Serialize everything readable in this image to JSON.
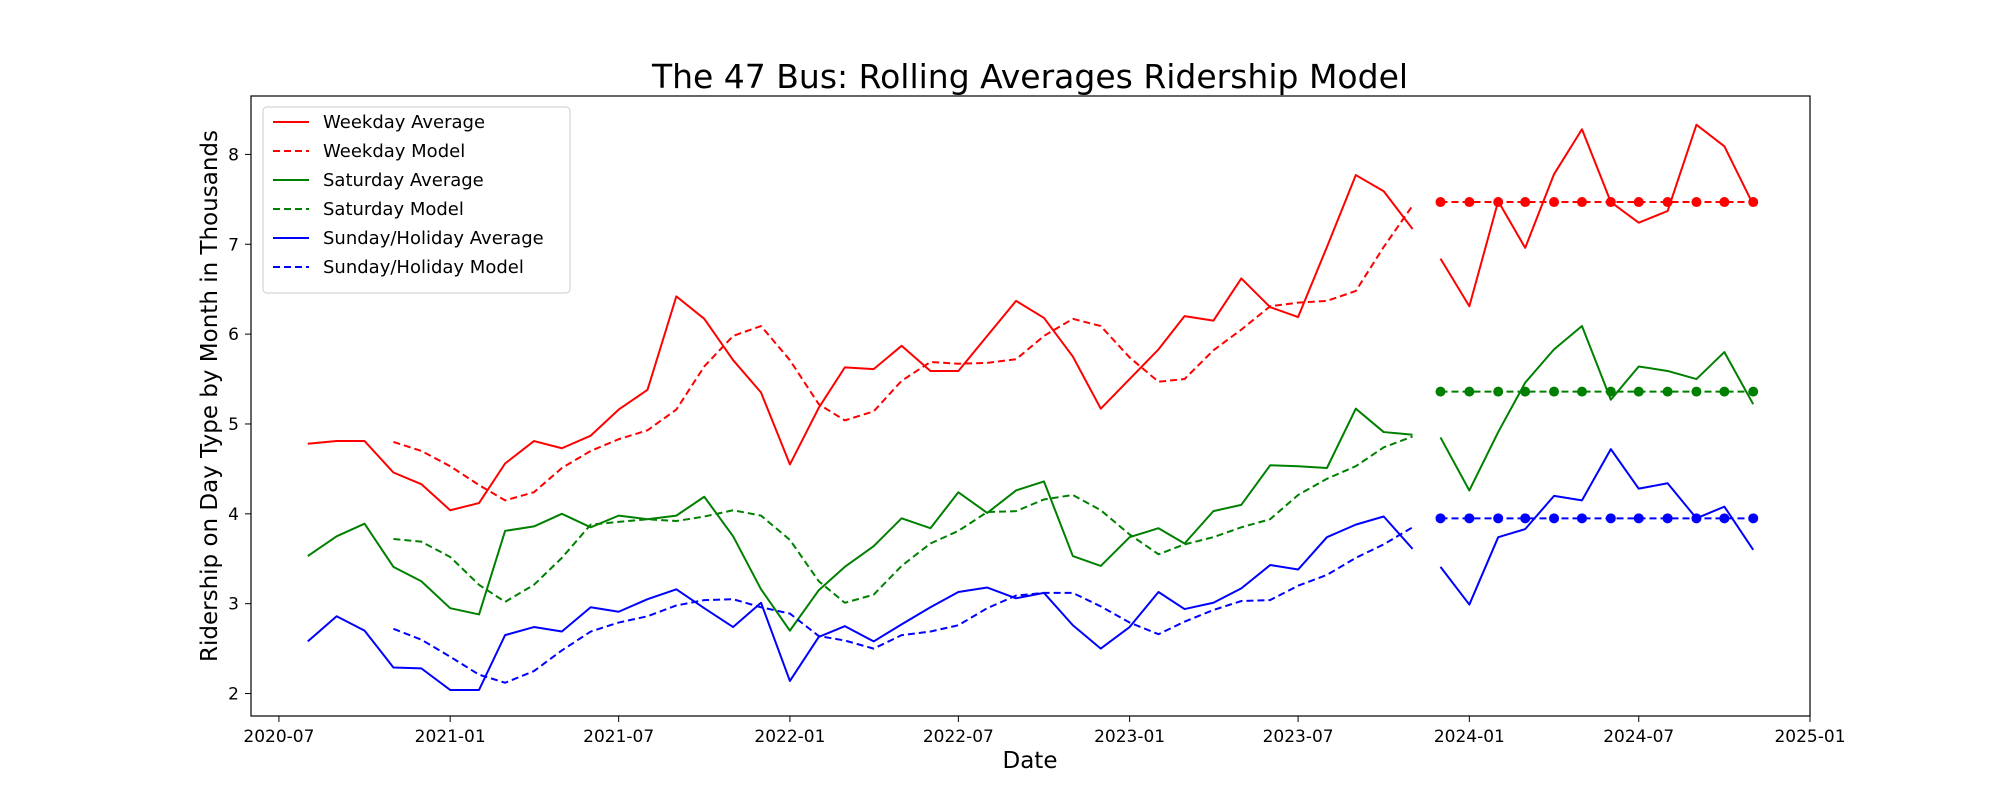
{
  "chart_data": {
    "type": "line",
    "title": "The 47 Bus: Rolling Averages Ridership Model",
    "xlabel": "Date",
    "ylabel": "Ridership on Day Type by Month in Thousands",
    "xlim": [
      "2020-06-01",
      "2025-01-01"
    ],
    "ylim": [
      1.75,
      8.65
    ],
    "x_ticks": [
      "2020-07",
      "2021-01",
      "2021-07",
      "2022-01",
      "2022-07",
      "2023-01",
      "2023-07",
      "2024-01",
      "2024-07",
      "2025-01"
    ],
    "y_ticks": [
      2,
      3,
      4,
      5,
      6,
      7,
      8
    ],
    "grid": false,
    "legend_position": "upper-left",
    "colors": {
      "weekday": "#ff0000",
      "saturday": "#008000",
      "sunday": "#0000ff"
    },
    "series": [
      {
        "name": "Weekday Average",
        "color": "#ff0000",
        "style": "solid",
        "x": [
          "2020-08",
          "2020-09",
          "2020-10",
          "2020-11",
          "2020-12",
          "2021-01",
          "2021-02",
          "2021-03",
          "2021-04",
          "2021-05",
          "2021-06",
          "2021-07",
          "2021-08",
          "2021-09",
          "2021-10",
          "2021-11",
          "2021-12",
          "2022-01",
          "2022-02",
          "2022-03",
          "2022-04",
          "2022-05",
          "2022-06",
          "2022-07",
          "2022-08",
          "2022-09",
          "2022-10",
          "2022-11",
          "2022-12",
          "2023-01",
          "2023-02",
          "2023-03",
          "2023-04",
          "2023-05",
          "2023-06",
          "2023-07",
          "2023-08",
          "2023-09",
          "2023-10",
          "2023-11",
          "2023-12",
          "2024-01",
          "2024-02",
          "2024-03",
          "2024-04",
          "2024-05",
          "2024-06",
          "2024-07",
          "2024-08",
          "2024-09",
          "2024-10",
          "2024-11"
        ],
        "y": [
          4.78,
          4.81,
          4.81,
          4.46,
          4.33,
          4.04,
          4.12,
          4.56,
          4.81,
          4.73,
          4.87,
          5.16,
          5.38,
          6.42,
          6.17,
          5.71,
          5.35,
          4.55,
          5.18,
          5.63,
          5.61,
          5.87,
          5.59,
          5.59,
          5.98,
          6.37,
          6.18,
          5.75,
          5.17,
          5.5,
          5.83,
          6.2,
          6.15,
          6.62,
          6.3,
          6.19,
          6.97,
          7.77,
          7.59,
          7.17,
          6.84,
          6.31,
          7.48,
          6.96,
          7.78,
          8.28,
          7.47,
          7.24,
          7.37,
          8.33,
          8.09,
          7.44
        ],
        "gaps_before": [
          "2023-12"
        ]
      },
      {
        "name": "Weekday Model",
        "color": "#ff0000",
        "style": "dashed",
        "x": [
          "2020-11",
          "2020-12",
          "2021-01",
          "2021-02",
          "2021-03",
          "2021-04",
          "2021-05",
          "2021-06",
          "2021-07",
          "2021-08",
          "2021-09",
          "2021-10",
          "2021-11",
          "2021-12",
          "2022-01",
          "2022-02",
          "2022-03",
          "2022-04",
          "2022-05",
          "2022-06",
          "2022-07",
          "2022-08",
          "2022-09",
          "2022-10",
          "2022-11",
          "2022-12",
          "2023-01",
          "2023-02",
          "2023-03",
          "2023-04",
          "2023-05",
          "2023-06",
          "2023-07",
          "2023-08",
          "2023-09",
          "2023-10",
          "2023-11",
          "2023-12",
          "2024-01",
          "2024-02",
          "2024-03",
          "2024-04",
          "2024-05",
          "2024-06",
          "2024-07",
          "2024-08",
          "2024-09",
          "2024-10",
          "2024-11"
        ],
        "y": [
          4.8,
          4.7,
          4.53,
          4.32,
          4.15,
          4.24,
          4.51,
          4.7,
          4.83,
          4.93,
          5.16,
          5.64,
          5.98,
          6.09,
          5.71,
          5.22,
          5.04,
          5.14,
          5.48,
          5.69,
          5.67,
          5.68,
          5.72,
          5.98,
          6.17,
          6.09,
          5.74,
          5.47,
          5.5,
          5.82,
          6.05,
          6.31,
          6.35,
          6.37,
          6.48,
          6.97,
          7.43,
          7.47,
          7.47,
          7.47,
          7.47,
          7.47,
          7.47,
          7.47,
          7.47,
          7.47,
          7.47,
          7.47,
          7.47
        ],
        "gaps_before": [
          "2023-12"
        ],
        "markers_from": "2023-12"
      },
      {
        "name": "Saturday Average",
        "color": "#008000",
        "style": "solid",
        "x": [
          "2020-08",
          "2020-09",
          "2020-10",
          "2020-11",
          "2020-12",
          "2021-01",
          "2021-02",
          "2021-03",
          "2021-04",
          "2021-05",
          "2021-06",
          "2021-07",
          "2021-08",
          "2021-09",
          "2021-10",
          "2021-11",
          "2021-12",
          "2022-01",
          "2022-02",
          "2022-03",
          "2022-04",
          "2022-05",
          "2022-06",
          "2022-07",
          "2022-08",
          "2022-09",
          "2022-10",
          "2022-11",
          "2022-12",
          "2023-01",
          "2023-02",
          "2023-03",
          "2023-04",
          "2023-05",
          "2023-06",
          "2023-07",
          "2023-08",
          "2023-09",
          "2023-10",
          "2023-11",
          "2023-12",
          "2024-01",
          "2024-02",
          "2024-03",
          "2024-04",
          "2024-05",
          "2024-06",
          "2024-07",
          "2024-08",
          "2024-09",
          "2024-10",
          "2024-11"
        ],
        "y": [
          3.53,
          3.75,
          3.89,
          3.41,
          3.25,
          2.95,
          2.88,
          3.81,
          3.86,
          4.0,
          3.85,
          3.98,
          3.94,
          3.98,
          4.19,
          3.75,
          3.16,
          2.7,
          3.15,
          3.41,
          3.64,
          3.95,
          3.84,
          4.24,
          4.01,
          4.26,
          4.36,
          3.53,
          3.42,
          3.74,
          3.84,
          3.67,
          4.03,
          4.1,
          4.54,
          4.53,
          4.51,
          5.17,
          4.91,
          4.88,
          4.85,
          4.26,
          4.91,
          5.46,
          5.83,
          6.09,
          5.27,
          5.64,
          5.59,
          5.5,
          5.8,
          5.22
        ],
        "gaps_before": [
          "2023-12"
        ]
      },
      {
        "name": "Saturday Model",
        "color": "#008000",
        "style": "dashed",
        "x": [
          "2020-11",
          "2020-12",
          "2021-01",
          "2021-02",
          "2021-03",
          "2021-04",
          "2021-05",
          "2021-06",
          "2021-07",
          "2021-08",
          "2021-09",
          "2021-10",
          "2021-11",
          "2021-12",
          "2022-01",
          "2022-02",
          "2022-03",
          "2022-04",
          "2022-05",
          "2022-06",
          "2022-07",
          "2022-08",
          "2022-09",
          "2022-10",
          "2022-11",
          "2022-12",
          "2023-01",
          "2023-02",
          "2023-03",
          "2023-04",
          "2023-05",
          "2023-06",
          "2023-07",
          "2023-08",
          "2023-09",
          "2023-10",
          "2023-11",
          "2023-12",
          "2024-01",
          "2024-02",
          "2024-03",
          "2024-04",
          "2024-05",
          "2024-06",
          "2024-07",
          "2024-08",
          "2024-09",
          "2024-10",
          "2024-11"
        ],
        "y": [
          3.72,
          3.69,
          3.52,
          3.21,
          3.02,
          3.21,
          3.51,
          3.88,
          3.91,
          3.94,
          3.92,
          3.97,
          4.04,
          3.98,
          3.71,
          3.25,
          3.01,
          3.1,
          3.42,
          3.67,
          3.81,
          4.02,
          4.03,
          4.16,
          4.21,
          4.04,
          3.77,
          3.55,
          3.66,
          3.74,
          3.85,
          3.94,
          4.21,
          4.39,
          4.53,
          4.74,
          4.86,
          5.36,
          5.36,
          5.36,
          5.36,
          5.36,
          5.36,
          5.36,
          5.36,
          5.36,
          5.36,
          5.36,
          5.36
        ],
        "gaps_before": [
          "2023-12"
        ],
        "markers_from": "2023-12"
      },
      {
        "name": "Sunday/Holiday Average",
        "color": "#0000ff",
        "style": "solid",
        "x": [
          "2020-08",
          "2020-09",
          "2020-10",
          "2020-11",
          "2020-12",
          "2021-01",
          "2021-02",
          "2021-03",
          "2021-04",
          "2021-05",
          "2021-06",
          "2021-07",
          "2021-08",
          "2021-09",
          "2021-10",
          "2021-11",
          "2021-12",
          "2022-01",
          "2022-02",
          "2022-03",
          "2022-04",
          "2022-05",
          "2022-06",
          "2022-07",
          "2022-08",
          "2022-09",
          "2022-10",
          "2022-11",
          "2022-12",
          "2023-01",
          "2023-02",
          "2023-03",
          "2023-04",
          "2023-05",
          "2023-06",
          "2023-07",
          "2023-08",
          "2023-09",
          "2023-10",
          "2023-11",
          "2023-12",
          "2024-01",
          "2024-02",
          "2024-03",
          "2024-04",
          "2024-05",
          "2024-06",
          "2024-07",
          "2024-08",
          "2024-09",
          "2024-10",
          "2024-11"
        ],
        "y": [
          2.58,
          2.86,
          2.7,
          2.29,
          2.28,
          2.04,
          2.04,
          2.65,
          2.74,
          2.69,
          2.96,
          2.91,
          3.05,
          3.16,
          2.95,
          2.74,
          3.01,
          2.14,
          2.63,
          2.75,
          2.58,
          2.77,
          2.96,
          3.13,
          3.18,
          3.06,
          3.12,
          2.76,
          2.5,
          2.74,
          3.13,
          2.94,
          3.01,
          3.17,
          3.43,
          3.38,
          3.74,
          3.88,
          3.97,
          3.61,
          3.41,
          2.99,
          3.74,
          3.83,
          4.2,
          4.15,
          4.72,
          4.28,
          4.34,
          3.95,
          4.08,
          3.6
        ],
        "gaps_before": [
          "2023-12"
        ]
      },
      {
        "name": "Sunday/Holiday Model",
        "color": "#0000ff",
        "style": "dashed",
        "x": [
          "2020-11",
          "2020-12",
          "2021-01",
          "2021-02",
          "2021-03",
          "2021-04",
          "2021-05",
          "2021-06",
          "2021-07",
          "2021-08",
          "2021-09",
          "2021-10",
          "2021-11",
          "2021-12",
          "2022-01",
          "2022-02",
          "2022-03",
          "2022-04",
          "2022-05",
          "2022-06",
          "2022-07",
          "2022-08",
          "2022-09",
          "2022-10",
          "2022-11",
          "2022-12",
          "2023-01",
          "2023-02",
          "2023-03",
          "2023-04",
          "2023-05",
          "2023-06",
          "2023-07",
          "2023-08",
          "2023-09",
          "2023-10",
          "2023-11",
          "2023-12",
          "2024-01",
          "2024-02",
          "2024-03",
          "2024-04",
          "2024-05",
          "2024-06",
          "2024-07",
          "2024-08",
          "2024-09",
          "2024-10",
          "2024-11"
        ],
        "y": [
          2.72,
          2.6,
          2.41,
          2.21,
          2.12,
          2.25,
          2.48,
          2.69,
          2.79,
          2.86,
          2.98,
          3.04,
          3.05,
          2.96,
          2.89,
          2.64,
          2.59,
          2.5,
          2.65,
          2.69,
          2.76,
          2.95,
          3.09,
          3.12,
          3.12,
          2.97,
          2.79,
          2.66,
          2.8,
          2.93,
          3.03,
          3.04,
          3.2,
          3.32,
          3.51,
          3.66,
          3.85,
          3.95,
          3.95,
          3.95,
          3.95,
          3.95,
          3.95,
          3.95,
          3.95,
          3.95,
          3.95,
          3.95,
          3.95
        ],
        "gaps_before": [
          "2023-12"
        ],
        "markers_from": "2023-12"
      }
    ]
  }
}
